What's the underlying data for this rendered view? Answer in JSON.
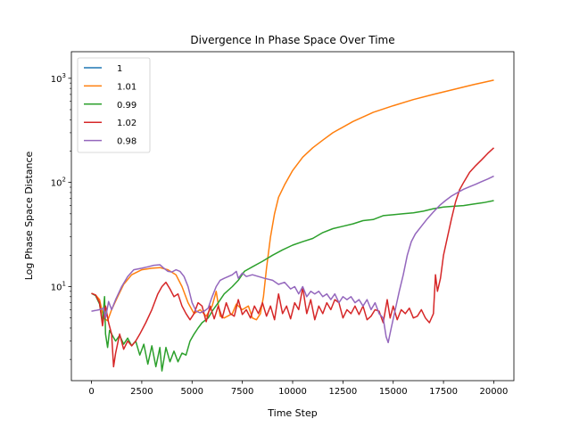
{
  "chart_data": {
    "type": "line",
    "title": "Divergence In Phase Space Over Time",
    "xlabel": "Time Step",
    "ylabel": "Log Phase Space Distance",
    "y_scale": "log",
    "xlim": [
      -1000,
      21000
    ],
    "ylim": [
      1.25,
      1800
    ],
    "x_ticks": [
      0,
      2500,
      5000,
      7500,
      10000,
      12500,
      15000,
      17500,
      20000
    ],
    "x_tick_labels": [
      "0",
      "2500",
      "5000",
      "7500",
      "10000",
      "12500",
      "15000",
      "17500",
      "20000"
    ],
    "y_ticks": [
      10,
      100,
      1000
    ],
    "y_tick_labels": [
      {
        "base": "10",
        "exp": "1"
      },
      {
        "base": "10",
        "exp": "2"
      },
      {
        "base": "10",
        "exp": "3"
      }
    ],
    "grid": false,
    "legend_position": "top-left",
    "series": [
      {
        "name": "1",
        "color": "#1f77b4",
        "points": []
      },
      {
        "name": "1.01",
        "color": "#ff7f0e",
        "points": [
          [
            0,
            8.6
          ],
          [
            200,
            8.3
          ],
          [
            400,
            7.5
          ],
          [
            600,
            5.0
          ],
          [
            800,
            4.7
          ],
          [
            1000,
            6.0
          ],
          [
            1300,
            8.0
          ],
          [
            1600,
            10.5
          ],
          [
            2000,
            13.0
          ],
          [
            2500,
            14.5
          ],
          [
            3000,
            15.0
          ],
          [
            3400,
            15.2
          ],
          [
            3800,
            14.5
          ],
          [
            4200,
            13.0
          ],
          [
            4500,
            10.0
          ],
          [
            4800,
            7.0
          ],
          [
            5100,
            5.5
          ],
          [
            5400,
            6.0
          ],
          [
            5700,
            5.2
          ],
          [
            6000,
            6.5
          ],
          [
            6200,
            9.0
          ],
          [
            6400,
            5.2
          ],
          [
            6600,
            5.0
          ],
          [
            7000,
            5.5
          ],
          [
            7200,
            6.8
          ],
          [
            7500,
            6.0
          ],
          [
            7800,
            6.5
          ],
          [
            8000,
            5.0
          ],
          [
            8200,
            4.8
          ],
          [
            8400,
            5.5
          ],
          [
            8550,
            8.0
          ],
          [
            8700,
            15.0
          ],
          [
            8900,
            30.0
          ],
          [
            9100,
            50.0
          ],
          [
            9300,
            72.0
          ],
          [
            9600,
            95.0
          ],
          [
            10000,
            130.0
          ],
          [
            10500,
            175.0
          ],
          [
            11000,
            215.0
          ],
          [
            11500,
            255.0
          ],
          [
            12000,
            300.0
          ],
          [
            13000,
            385.0
          ],
          [
            14000,
            470.0
          ],
          [
            15000,
            545.0
          ],
          [
            16000,
            625.0
          ],
          [
            17000,
            700.0
          ],
          [
            18000,
            780.0
          ],
          [
            19000,
            870.0
          ],
          [
            20000,
            960.0
          ]
        ]
      },
      {
        "name": "0.99",
        "color": "#2ca02c",
        "points": [
          [
            0,
            8.6
          ],
          [
            200,
            8.2
          ],
          [
            400,
            6.8
          ],
          [
            550,
            4.5
          ],
          [
            650,
            8.0
          ],
          [
            700,
            3.5
          ],
          [
            800,
            2.6
          ],
          [
            900,
            3.8
          ],
          [
            1000,
            3.5
          ],
          [
            1200,
            3.0
          ],
          [
            1400,
            3.4
          ],
          [
            1600,
            2.8
          ],
          [
            1800,
            3.2
          ],
          [
            2000,
            2.7
          ],
          [
            2200,
            3.0
          ],
          [
            2400,
            2.2
          ],
          [
            2600,
            2.8
          ],
          [
            2800,
            1.8
          ],
          [
            3000,
            2.7
          ],
          [
            3200,
            1.7
          ],
          [
            3400,
            2.6
          ],
          [
            3500,
            1.55
          ],
          [
            3700,
            2.6
          ],
          [
            3900,
            1.9
          ],
          [
            4100,
            2.4
          ],
          [
            4300,
            1.9
          ],
          [
            4500,
            2.3
          ],
          [
            4700,
            2.2
          ],
          [
            4900,
            3.0
          ],
          [
            5100,
            3.5
          ],
          [
            5300,
            4.0
          ],
          [
            5500,
            4.5
          ],
          [
            5800,
            5.0
          ],
          [
            6000,
            5.8
          ],
          [
            6300,
            7.0
          ],
          [
            6600,
            8.5
          ],
          [
            7000,
            10.0
          ],
          [
            7300,
            11.5
          ],
          [
            7600,
            14.0
          ],
          [
            8000,
            15.5
          ],
          [
            8500,
            17.5
          ],
          [
            9000,
            20.0
          ],
          [
            9500,
            22.5
          ],
          [
            10000,
            25.0
          ],
          [
            10500,
            27.0
          ],
          [
            11000,
            29.0
          ],
          [
            11500,
            33.0
          ],
          [
            12000,
            36.0
          ],
          [
            12500,
            38.0
          ],
          [
            13000,
            40.0
          ],
          [
            13500,
            43.0
          ],
          [
            14000,
            44.0
          ],
          [
            14500,
            48.0
          ],
          [
            15000,
            49.0
          ],
          [
            15500,
            50.0
          ],
          [
            16000,
            51.0
          ],
          [
            16500,
            53.0
          ],
          [
            17000,
            56.0
          ],
          [
            17500,
            58.0
          ],
          [
            18000,
            59.0
          ],
          [
            18500,
            60.0
          ],
          [
            19000,
            62.0
          ],
          [
            19500,
            64.0
          ],
          [
            20000,
            67.0
          ]
        ]
      },
      {
        "name": "1.02",
        "color": "#d62728",
        "points": [
          [
            0,
            8.6
          ],
          [
            200,
            8.3
          ],
          [
            400,
            7.0
          ],
          [
            550,
            4.2
          ],
          [
            700,
            6.5
          ],
          [
            850,
            4.5
          ],
          [
            1000,
            3.5
          ],
          [
            1100,
            1.7
          ],
          [
            1200,
            2.3
          ],
          [
            1400,
            3.5
          ],
          [
            1600,
            2.5
          ],
          [
            1800,
            3.0
          ],
          [
            2000,
            2.7
          ],
          [
            2200,
            3.0
          ],
          [
            2400,
            3.5
          ],
          [
            2700,
            4.5
          ],
          [
            3000,
            6.0
          ],
          [
            3300,
            8.5
          ],
          [
            3500,
            10.0
          ],
          [
            3700,
            11.0
          ],
          [
            3900,
            9.5
          ],
          [
            4100,
            8.0
          ],
          [
            4300,
            8.5
          ],
          [
            4500,
            6.5
          ],
          [
            4700,
            5.5
          ],
          [
            4900,
            4.8
          ],
          [
            5100,
            5.5
          ],
          [
            5300,
            7.0
          ],
          [
            5500,
            6.5
          ],
          [
            5700,
            4.6
          ],
          [
            5900,
            6.5
          ],
          [
            6100,
            4.9
          ],
          [
            6300,
            6.5
          ],
          [
            6500,
            5.0
          ],
          [
            6700,
            7.0
          ],
          [
            6900,
            5.5
          ],
          [
            7100,
            5.2
          ],
          [
            7300,
            7.5
          ],
          [
            7500,
            5.4
          ],
          [
            7700,
            6.0
          ],
          [
            7900,
            5.0
          ],
          [
            8100,
            6.5
          ],
          [
            8300,
            5.5
          ],
          [
            8500,
            7.0
          ],
          [
            8700,
            5.2
          ],
          [
            8900,
            6.5
          ],
          [
            9100,
            4.8
          ],
          [
            9300,
            8.5
          ],
          [
            9500,
            5.5
          ],
          [
            9700,
            6.5
          ],
          [
            9900,
            4.9
          ],
          [
            10100,
            7.0
          ],
          [
            10300,
            6.0
          ],
          [
            10500,
            9.8
          ],
          [
            10700,
            5.5
          ],
          [
            10900,
            7.5
          ],
          [
            11100,
            4.8
          ],
          [
            11300,
            6.5
          ],
          [
            11500,
            5.5
          ],
          [
            11700,
            7.0
          ],
          [
            11900,
            6.0
          ],
          [
            12100,
            7.5
          ],
          [
            12300,
            7.0
          ],
          [
            12500,
            5.0
          ],
          [
            12700,
            6.0
          ],
          [
            12900,
            5.5
          ],
          [
            13100,
            6.5
          ],
          [
            13300,
            5.4
          ],
          [
            13500,
            6.5
          ],
          [
            13700,
            4.8
          ],
          [
            13900,
            5.2
          ],
          [
            14100,
            6.0
          ],
          [
            14300,
            5.8
          ],
          [
            14500,
            4.5
          ],
          [
            14700,
            7.5
          ],
          [
            14850,
            5.0
          ],
          [
            15000,
            6.5
          ],
          [
            15200,
            4.8
          ],
          [
            15400,
            6.0
          ],
          [
            15600,
            5.5
          ],
          [
            15800,
            6.2
          ],
          [
            16000,
            5.0
          ],
          [
            16200,
            5.2
          ],
          [
            16400,
            6.0
          ],
          [
            16600,
            5.0
          ],
          [
            16800,
            4.5
          ],
          [
            17000,
            5.5
          ],
          [
            17100,
            13.0
          ],
          [
            17200,
            9.0
          ],
          [
            17350,
            12.0
          ],
          [
            17500,
            20.0
          ],
          [
            17700,
            30.0
          ],
          [
            17900,
            45.0
          ],
          [
            18100,
            65.0
          ],
          [
            18300,
            85.0
          ],
          [
            18500,
            100.0
          ],
          [
            18800,
            125.0
          ],
          [
            19100,
            145.0
          ],
          [
            19400,
            165.0
          ],
          [
            19700,
            190.0
          ],
          [
            20000,
            215.0
          ]
        ]
      },
      {
        "name": "0.98",
        "color": "#9467bd",
        "points": [
          [
            0,
            5.8
          ],
          [
            200,
            5.9
          ],
          [
            400,
            6.0
          ],
          [
            600,
            6.2
          ],
          [
            700,
            5.0
          ],
          [
            850,
            7.2
          ],
          [
            1000,
            6.0
          ],
          [
            1200,
            7.5
          ],
          [
            1500,
            10.0
          ],
          [
            1800,
            12.5
          ],
          [
            2100,
            14.5
          ],
          [
            2500,
            15.0
          ],
          [
            2800,
            15.5
          ],
          [
            3100,
            16.0
          ],
          [
            3400,
            16.2
          ],
          [
            3600,
            15.0
          ],
          [
            3800,
            14.0
          ],
          [
            4000,
            13.8
          ],
          [
            4200,
            14.5
          ],
          [
            4400,
            14.0
          ],
          [
            4600,
            12.5
          ],
          [
            4800,
            10.0
          ],
          [
            5000,
            7.0
          ],
          [
            5200,
            5.8
          ],
          [
            5400,
            5.6
          ],
          [
            5600,
            5.8
          ],
          [
            5800,
            6.2
          ],
          [
            6000,
            8.0
          ],
          [
            6200,
            10.0
          ],
          [
            6400,
            11.5
          ],
          [
            6600,
            12.0
          ],
          [
            6800,
            12.5
          ],
          [
            7000,
            13.0
          ],
          [
            7200,
            14.0
          ],
          [
            7300,
            12.0
          ],
          [
            7500,
            13.5
          ],
          [
            7700,
            12.5
          ],
          [
            8000,
            13.0
          ],
          [
            8300,
            12.5
          ],
          [
            8600,
            12.0
          ],
          [
            9000,
            11.5
          ],
          [
            9300,
            10.5
          ],
          [
            9600,
            11.0
          ],
          [
            9900,
            9.5
          ],
          [
            10100,
            10.0
          ],
          [
            10300,
            8.5
          ],
          [
            10500,
            10.0
          ],
          [
            10700,
            8.0
          ],
          [
            10900,
            9.0
          ],
          [
            11100,
            8.5
          ],
          [
            11300,
            9.0
          ],
          [
            11500,
            8.0
          ],
          [
            11700,
            8.5
          ],
          [
            11900,
            7.5
          ],
          [
            12100,
            8.5
          ],
          [
            12300,
            7.0
          ],
          [
            12500,
            8.0
          ],
          [
            12700,
            7.5
          ],
          [
            12900,
            8.0
          ],
          [
            13100,
            7.0
          ],
          [
            13300,
            7.5
          ],
          [
            13500,
            6.5
          ],
          [
            13700,
            7.5
          ],
          [
            13900,
            6.0
          ],
          [
            14100,
            7.0
          ],
          [
            14300,
            5.5
          ],
          [
            14500,
            5.0
          ],
          [
            14650,
            3.3
          ],
          [
            14750,
            2.9
          ],
          [
            14900,
            4.0
          ],
          [
            15100,
            6.0
          ],
          [
            15300,
            9.0
          ],
          [
            15500,
            13.0
          ],
          [
            15700,
            20.0
          ],
          [
            15900,
            27.0
          ],
          [
            16100,
            32.0
          ],
          [
            16400,
            38.0
          ],
          [
            16700,
            45.0
          ],
          [
            17000,
            52.0
          ],
          [
            17300,
            60.0
          ],
          [
            17600,
            67.0
          ],
          [
            17900,
            74.0
          ],
          [
            18200,
            80.0
          ],
          [
            18500,
            86.0
          ],
          [
            18800,
            91.0
          ],
          [
            19100,
            96.0
          ],
          [
            19400,
            102.0
          ],
          [
            19700,
            108.0
          ],
          [
            20000,
            115.0
          ]
        ]
      }
    ]
  }
}
